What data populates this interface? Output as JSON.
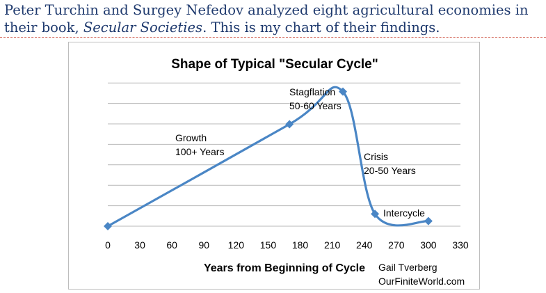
{
  "caption": {
    "line1": "Peter Turchin and Surgey Nefedov analyzed eight agricultural economies in",
    "line2_pre": "their book, ",
    "line2_book": "Secular Societies",
    "line2_post": ". This is my chart of their findings."
  },
  "chart_data": {
    "type": "line",
    "title": "Shape of Typical \"Secular Cycle\"",
    "xlabel": "Years from Beginning of Cycle",
    "ylabel": "",
    "xlim": [
      0,
      330
    ],
    "x_ticks": [
      "0",
      "30",
      "60",
      "90",
      "120",
      "150",
      "180",
      "210",
      "240",
      "270",
      "300",
      "330"
    ],
    "y_ticks_labeled": false,
    "grid": "horizontal",
    "legend": "none",
    "series": [
      {
        "color": "#4a86c5",
        "x": [
          0,
          170,
          220,
          250,
          300
        ],
        "y": [
          0,
          1.0,
          1.32,
          0.12,
          0.05
        ]
      }
    ],
    "annotations": [
      {
        "line1": "Growth",
        "line2": "100+ Years"
      },
      {
        "line1": "Stagflation",
        "line2": "50-60 Years"
      },
      {
        "line1": "Crisis",
        "line2": "20-50 Years"
      },
      {
        "line1": "Intercycle",
        "line2": ""
      }
    ],
    "credit": {
      "author": "Gail Tverberg",
      "site": "OurFiniteWorld.com"
    }
  }
}
